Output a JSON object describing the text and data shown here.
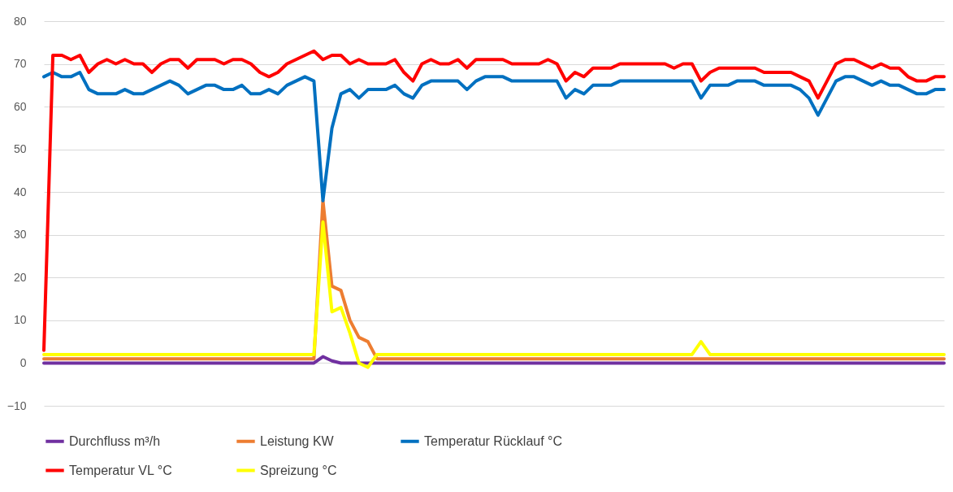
{
  "chart_data": {
    "type": "line",
    "categories": [
      null,
      null,
      null,
      null,
      null,
      null,
      null,
      null,
      null,
      null,
      null,
      null,
      null,
      null,
      null,
      null,
      null,
      null,
      null,
      null,
      null,
      null,
      null,
      null,
      null,
      null,
      null,
      null,
      null,
      null,
      null,
      null,
      null,
      null,
      null,
      null,
      null,
      null,
      null,
      null,
      null,
      null,
      null,
      null,
      null,
      null,
      null,
      null,
      null,
      null,
      null,
      null,
      null,
      null,
      null,
      null,
      null,
      null,
      null,
      null,
      null,
      null,
      null,
      null,
      null,
      null,
      null,
      null,
      null,
      null,
      null,
      null,
      null,
      null,
      null,
      null,
      null,
      null,
      null,
      null,
      null,
      null,
      null,
      null,
      null,
      null,
      null,
      null,
      null,
      null,
      null,
      null,
      null,
      null,
      null,
      null,
      null,
      null,
      null,
      null,
      null
    ],
    "ylim": [
      -10,
      80
    ],
    "yticks": [
      -10,
      0,
      10,
      20,
      30,
      40,
      50,
      60,
      70,
      80
    ],
    "grid": "y",
    "legend": "bottom",
    "series": [
      {
        "name": "Durchfluss m³/h",
        "color": "#7030a0",
        "values": [
          0,
          0,
          0,
          0,
          0,
          0,
          0,
          0,
          0,
          0,
          0,
          0,
          0,
          0,
          0,
          0,
          0,
          0,
          0,
          0,
          0,
          0,
          0,
          0,
          0,
          0,
          0,
          0,
          0,
          0,
          0,
          1.5,
          0.5,
          0,
          0,
          0,
          0,
          0,
          0,
          0,
          0,
          0,
          0,
          0,
          0,
          0,
          0,
          0,
          0,
          0,
          0,
          0,
          0,
          0,
          0,
          0,
          0,
          0,
          0,
          0,
          0,
          0,
          0,
          0,
          0,
          0,
          0,
          0,
          0,
          0,
          0,
          0,
          0,
          0,
          0,
          0,
          0,
          0,
          0,
          0,
          0,
          0,
          0,
          0,
          0,
          0,
          0,
          0,
          0,
          0,
          0,
          0,
          0,
          0,
          0,
          0,
          0,
          0,
          0,
          0,
          0
        ]
      },
      {
        "name": "Leistung KW",
        "color": "#ed7d31",
        "values": [
          1,
          1,
          1,
          1,
          1,
          1,
          1,
          1,
          1,
          1,
          1,
          1,
          1,
          1,
          1,
          1,
          1,
          1,
          1,
          1,
          1,
          1,
          1,
          1,
          1,
          1,
          1,
          1,
          1,
          1,
          1,
          38,
          18,
          17,
          10,
          6,
          5,
          1,
          1,
          1,
          1,
          1,
          1,
          1,
          1,
          1,
          1,
          1,
          1,
          1,
          1,
          1,
          1,
          1,
          1,
          1,
          1,
          1,
          1,
          1,
          1,
          1,
          1,
          1,
          1,
          1,
          1,
          1,
          1,
          1,
          1,
          1,
          1,
          1,
          1,
          1,
          1,
          1,
          1,
          1,
          1,
          1,
          1,
          1,
          1,
          1,
          1,
          1,
          1,
          1,
          1,
          1,
          1,
          1,
          1,
          1,
          1,
          1,
          1,
          1,
          1
        ]
      },
      {
        "name": "Temperatur Rücklauf °C",
        "color": "#0070c0",
        "values": [
          67,
          68,
          67,
          67,
          68,
          64,
          63,
          63,
          63,
          64,
          63,
          63,
          64,
          65,
          66,
          65,
          63,
          64,
          65,
          65,
          64,
          64,
          65,
          63,
          63,
          64,
          63,
          65,
          66,
          67,
          66,
          38,
          55,
          63,
          64,
          62,
          64,
          64,
          64,
          65,
          63,
          62,
          65,
          66,
          66,
          66,
          66,
          64,
          66,
          67,
          67,
          67,
          66,
          66,
          66,
          66,
          66,
          66,
          62,
          64,
          63,
          65,
          65,
          65,
          66,
          66,
          66,
          66,
          66,
          66,
          66,
          66,
          66,
          62,
          65,
          65,
          65,
          66,
          66,
          66,
          65,
          65,
          65,
          65,
          64,
          62,
          58,
          62,
          66,
          67,
          67,
          66,
          65,
          66,
          65,
          65,
          64,
          63,
          63,
          64,
          64
        ]
      },
      {
        "name": "Temperatur VL °C",
        "color": "#ff0000",
        "values": [
          3,
          72,
          72,
          71,
          72,
          68,
          70,
          71,
          70,
          71,
          70,
          70,
          68,
          70,
          71,
          71,
          69,
          71,
          71,
          71,
          70,
          71,
          71,
          70,
          68,
          67,
          68,
          70,
          71,
          72,
          73,
          71,
          72,
          72,
          70,
          71,
          70,
          70,
          70,
          71,
          68,
          66,
          70,
          71,
          70,
          70,
          71,
          69,
          71,
          71,
          71,
          71,
          70,
          70,
          70,
          70,
          71,
          70,
          66,
          68,
          67,
          69,
          69,
          69,
          70,
          70,
          70,
          70,
          70,
          70,
          69,
          70,
          70,
          66,
          68,
          69,
          69,
          69,
          69,
          69,
          68,
          68,
          68,
          68,
          67,
          66,
          62,
          66,
          70,
          71,
          71,
          70,
          69,
          70,
          69,
          69,
          67,
          66,
          66,
          67,
          67
        ]
      },
      {
        "name": "Spreizung °C",
        "color": "#ffff00",
        "values": [
          2,
          2,
          2,
          2,
          2,
          2,
          2,
          2,
          2,
          2,
          2,
          2,
          2,
          2,
          2,
          2,
          2,
          2,
          2,
          2,
          2,
          2,
          2,
          2,
          2,
          2,
          2,
          2,
          2,
          2,
          2,
          33,
          12,
          13,
          7,
          0,
          -1,
          2,
          2,
          2,
          2,
          2,
          2,
          2,
          2,
          2,
          2,
          2,
          2,
          2,
          2,
          2,
          2,
          2,
          2,
          2,
          2,
          2,
          2,
          2,
          2,
          2,
          2,
          2,
          2,
          2,
          2,
          2,
          2,
          2,
          2,
          2,
          2,
          5,
          2,
          2,
          2,
          2,
          2,
          2,
          2,
          2,
          2,
          2,
          2,
          2,
          2,
          2,
          2,
          2,
          2,
          2,
          2,
          2,
          2,
          2,
          2,
          2,
          2,
          2,
          2
        ]
      }
    ]
  }
}
